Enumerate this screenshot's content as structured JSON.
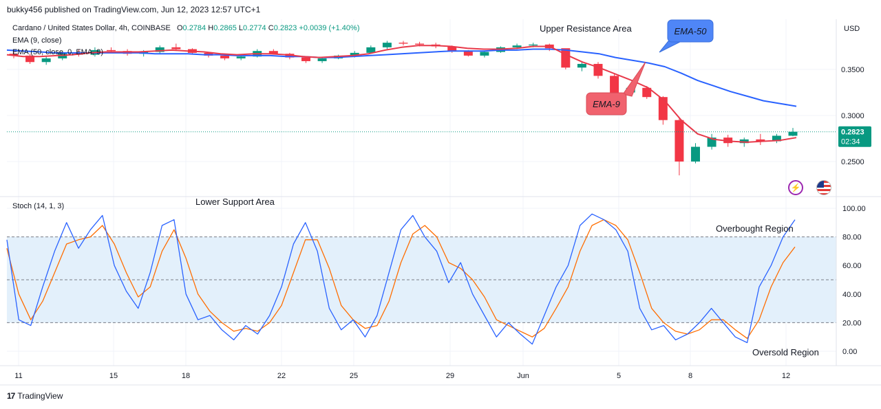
{
  "header": {
    "publisher_line": "bukky456 published on TradingView.com, Jun 12, 2023 12:57 UTC+1"
  },
  "symbol": {
    "name": "Cardano / United States Dollar, 4h, COINBASE",
    "open_label": "O",
    "open": "0.2784",
    "high_label": "H",
    "high": "0.2865",
    "low_label": "L",
    "low": "0.2774",
    "close_label": "C",
    "close": "0.2823",
    "change": "+0.0039 (+1.40%)"
  },
  "indicators": {
    "ema9": "EMA (9, close)",
    "ema50": "EMA (50, close, 0, EMA, 9)",
    "stoch": "Stoch (14, 1, 3)"
  },
  "price_axis": {
    "currency": "USD",
    "ticks": [
      "0.3500",
      "0.3000",
      "0.2500"
    ],
    "current_price": "0.2823",
    "countdown": "02:34"
  },
  "osc_axis": {
    "ticks": [
      "100.00",
      "80.00",
      "60.00",
      "40.00",
      "20.00",
      "0.00"
    ]
  },
  "x_axis": {
    "ticks": [
      "11",
      "15",
      "18",
      "22",
      "25",
      "29",
      "Jun",
      "5",
      "8",
      "12"
    ]
  },
  "annotations": {
    "upper_resistance": "Upper Resistance Area",
    "lower_support": "Lower Support Area",
    "ema50_callout": "EMA-50",
    "ema9_callout": "EMA-9",
    "overbought": "Overbought Region",
    "oversold": "Oversold Region"
  },
  "footer": {
    "brand": "TradingView",
    "logo": "17"
  },
  "icons": {
    "alert": "lightning-icon",
    "flag": "us-flag-icon"
  },
  "colors": {
    "up": "#089981",
    "down": "#f23645",
    "ema9": "#e8394a",
    "ema50": "#2962ff",
    "stoch_k": "#2962ff",
    "stoch_d": "#ff6d00",
    "band": "#e3f0fb",
    "callout_blue": "#4f86f7",
    "callout_red": "#f0626e"
  },
  "chart_data": [
    {
      "type": "candlestick",
      "title": "Cardano / United States Dollar, 4h, COINBASE",
      "x_ticks": [
        "11",
        "15",
        "18",
        "22",
        "25",
        "29",
        "Jun",
        "5",
        "8",
        "12"
      ],
      "ylim": [
        0.22,
        0.39
      ],
      "y_ticks": [
        0.35,
        0.3,
        0.25
      ],
      "candles_sampled": [
        [
          0.367,
          0.37,
          0.362,
          0.365
        ],
        [
          0.365,
          0.367,
          0.356,
          0.358
        ],
        [
          0.358,
          0.364,
          0.355,
          0.362
        ],
        [
          0.362,
          0.369,
          0.36,
          0.368
        ],
        [
          0.368,
          0.372,
          0.364,
          0.366
        ],
        [
          0.366,
          0.374,
          0.364,
          0.371
        ],
        [
          0.371,
          0.374,
          0.368,
          0.37
        ],
        [
          0.37,
          0.372,
          0.365,
          0.367
        ],
        [
          0.367,
          0.371,
          0.364,
          0.369
        ],
        [
          0.369,
          0.376,
          0.367,
          0.374
        ],
        [
          0.374,
          0.378,
          0.37,
          0.372
        ],
        [
          0.372,
          0.373,
          0.366,
          0.368
        ],
        [
          0.368,
          0.369,
          0.363,
          0.365
        ],
        [
          0.365,
          0.367,
          0.36,
          0.362
        ],
        [
          0.362,
          0.366,
          0.36,
          0.364
        ],
        [
          0.364,
          0.372,
          0.363,
          0.37
        ],
        [
          0.37,
          0.372,
          0.366,
          0.367
        ],
        [
          0.367,
          0.368,
          0.361,
          0.363
        ],
        [
          0.363,
          0.364,
          0.357,
          0.359
        ],
        [
          0.359,
          0.363,
          0.357,
          0.362
        ],
        [
          0.362,
          0.366,
          0.361,
          0.365
        ],
        [
          0.365,
          0.37,
          0.363,
          0.368
        ],
        [
          0.368,
          0.376,
          0.367,
          0.374
        ],
        [
          0.374,
          0.381,
          0.372,
          0.379
        ],
        [
          0.379,
          0.381,
          0.376,
          0.378
        ],
        [
          0.378,
          0.38,
          0.375,
          0.377
        ],
        [
          0.377,
          0.379,
          0.373,
          0.375
        ],
        [
          0.375,
          0.376,
          0.368,
          0.37
        ],
        [
          0.37,
          0.371,
          0.364,
          0.365
        ],
        [
          0.365,
          0.37,
          0.363,
          0.369
        ],
        [
          0.369,
          0.375,
          0.368,
          0.374
        ],
        [
          0.374,
          0.378,
          0.372,
          0.376
        ],
        [
          0.376,
          0.379,
          0.374,
          0.377
        ],
        [
          0.377,
          0.378,
          0.37,
          0.373
        ],
        [
          0.373,
          0.36,
          0.35,
          0.352
        ],
        [
          0.352,
          0.358,
          0.348,
          0.356
        ],
        [
          0.356,
          0.358,
          0.34,
          0.343
        ],
        [
          0.343,
          0.345,
          0.322,
          0.325
        ],
        [
          0.325,
          0.334,
          0.323,
          0.33
        ],
        [
          0.33,
          0.332,
          0.318,
          0.32
        ],
        [
          0.32,
          0.321,
          0.29,
          0.295
        ],
        [
          0.295,
          0.297,
          0.235,
          0.25
        ],
        [
          0.25,
          0.27,
          0.248,
          0.266
        ],
        [
          0.266,
          0.28,
          0.263,
          0.276
        ],
        [
          0.276,
          0.279,
          0.266,
          0.27
        ],
        [
          0.27,
          0.276,
          0.266,
          0.274
        ],
        [
          0.274,
          0.28,
          0.268,
          0.272
        ],
        [
          0.272,
          0.28,
          0.27,
          0.278
        ],
        [
          0.278,
          0.2865,
          0.2774,
          0.2823
        ]
      ],
      "series": [
        {
          "name": "EMA (9, close)",
          "values": [
            0.366,
            0.364,
            0.364,
            0.365,
            0.366,
            0.368,
            0.369,
            0.369,
            0.369,
            0.37,
            0.371,
            0.37,
            0.369,
            0.367,
            0.366,
            0.367,
            0.367,
            0.366,
            0.364,
            0.363,
            0.364,
            0.365,
            0.367,
            0.371,
            0.374,
            0.376,
            0.376,
            0.375,
            0.373,
            0.372,
            0.372,
            0.373,
            0.375,
            0.375,
            0.366,
            0.358,
            0.352,
            0.345,
            0.338,
            0.33,
            0.316,
            0.295,
            0.28,
            0.274,
            0.272,
            0.271,
            0.272,
            0.273,
            0.276
          ]
        },
        {
          "name": "EMA (50, close, 0, EMA, 9)",
          "values": [
            0.371,
            0.37,
            0.369,
            0.368,
            0.368,
            0.368,
            0.368,
            0.368,
            0.368,
            0.367,
            0.367,
            0.367,
            0.366,
            0.366,
            0.365,
            0.365,
            0.365,
            0.364,
            0.364,
            0.363,
            0.363,
            0.364,
            0.365,
            0.366,
            0.367,
            0.368,
            0.369,
            0.37,
            0.37,
            0.37,
            0.371,
            0.371,
            0.372,
            0.372,
            0.371,
            0.369,
            0.367,
            0.363,
            0.36,
            0.357,
            0.353,
            0.346,
            0.338,
            0.332,
            0.326,
            0.321,
            0.316,
            0.313,
            0.31
          ]
        }
      ],
      "current_price": 0.2823
    },
    {
      "type": "line",
      "title": "Stoch (14, 1, 3)",
      "ylim": [
        0,
        100
      ],
      "y_ticks": [
        100,
        80,
        60,
        40,
        20,
        0
      ],
      "bands": [
        20,
        50,
        80
      ],
      "series": [
        {
          "name": "%K",
          "values": [
            78,
            22,
            18,
            45,
            70,
            90,
            72,
            85,
            95,
            60,
            42,
            30,
            55,
            88,
            92,
            40,
            22,
            25,
            15,
            8,
            18,
            12,
            25,
            45,
            75,
            90,
            70,
            30,
            15,
            22,
            10,
            25,
            55,
            85,
            95,
            80,
            70,
            48,
            62,
            40,
            25,
            10,
            20,
            12,
            5,
            25,
            45,
            60,
            88,
            96,
            92,
            85,
            70,
            30,
            15,
            18,
            8,
            12,
            20,
            30,
            20,
            10,
            6,
            45,
            60,
            80,
            92
          ]
        },
        {
          "name": "%D",
          "values": [
            72,
            40,
            22,
            35,
            55,
            75,
            78,
            80,
            88,
            75,
            55,
            38,
            45,
            70,
            85,
            65,
            40,
            28,
            20,
            14,
            16,
            14,
            20,
            32,
            55,
            78,
            78,
            58,
            32,
            22,
            16,
            18,
            35,
            62,
            82,
            88,
            80,
            62,
            58,
            50,
            38,
            22,
            18,
            14,
            10,
            16,
            30,
            45,
            70,
            88,
            92,
            88,
            78,
            55,
            30,
            20,
            14,
            12,
            15,
            22,
            22,
            15,
            9,
            22,
            45,
            62,
            73
          ]
        }
      ],
      "annotations": [
        "Overbought Region",
        "Oversold Region"
      ]
    }
  ]
}
